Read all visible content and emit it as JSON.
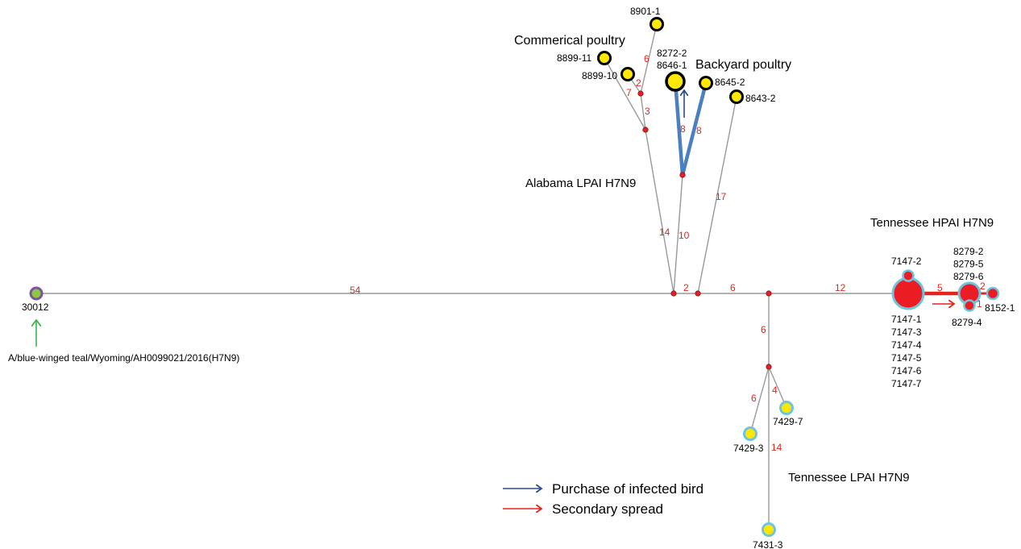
{
  "group_labels": {
    "commercial": "Commerical poultry",
    "backyard": "Backyard poultry",
    "alabama": "Alabama LPAI H7N9",
    "tn_hpai": "Tennessee HPAI H7N9",
    "tn_lpai": "Tennessee LPAI H7N9"
  },
  "root": {
    "label": "30012",
    "annotation": "A/blue-winged teal/Wyoming/AH0099021/2016(H7N9)"
  },
  "nodes": {
    "n8901_1": "8901-1",
    "n8899_11": "8899-11",
    "n8899_10": "8899-10",
    "n8272_2": "8272-2",
    "n8646_1": "8646-1",
    "n8645_2": "8645-2",
    "n8643_2": "8643-2",
    "n7147_2": "7147-2",
    "n7147_list": [
      "7147-1",
      "7147-3",
      "7147-4",
      "7147-5",
      "7147-6",
      "7147-7"
    ],
    "n8279_list": [
      "8279-2",
      "8279-5",
      "8279-6"
    ],
    "n8279_4": "8279-4",
    "n8152_1": "8152-1",
    "n7429_7": "7429-7",
    "n7429_3": "7429-3",
    "n7431_3": "7431-3"
  },
  "branch_lengths": {
    "root_main": "54",
    "main_a": "2",
    "main_b": "6",
    "main_hpai": "12",
    "hpai_8279": "5",
    "h8279_8152": "2",
    "h8279_4": "1",
    "to_commercial": "14",
    "comm_3": "3",
    "comm_7": "7",
    "comm_2": "2",
    "comm_6": "6",
    "to_backyard": "10",
    "back_8a": "8",
    "back_8b": "8",
    "to_8643": "17",
    "to_tnlpai": "6",
    "lpai_6": "6",
    "lpai_4": "4",
    "lpai_14": "14"
  },
  "legend": {
    "purchase": "Purchase of infected bird",
    "secondary": "Secondary spread"
  },
  "colors": {
    "blue_arrow": "#2e4a8c",
    "red_arrow": "#e3241c",
    "thick_blue_edge": "#4a7fc1",
    "thick_red_edge": "#e3241c",
    "gray_edge": "#999999",
    "yellow_node": "#ffe800",
    "cyan_ring": "#6ec4de",
    "red_node": "#ec1c24",
    "purple_ring": "#7a52a5",
    "green_node": "#8dc63f",
    "green_arrow": "#3bb54a",
    "branch_text": "#e3241c"
  }
}
